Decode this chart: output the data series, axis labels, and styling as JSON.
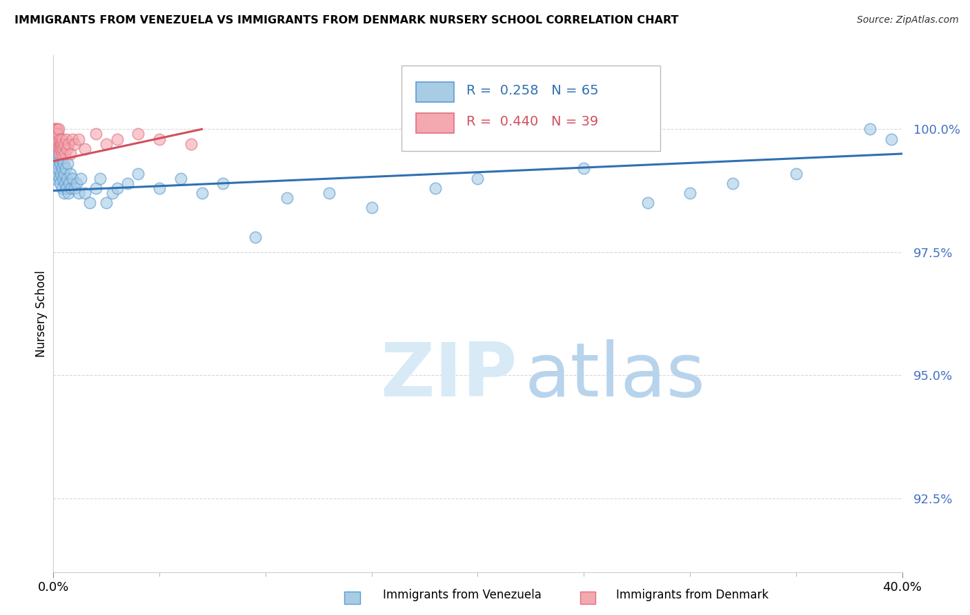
{
  "title": "IMMIGRANTS FROM VENEZUELA VS IMMIGRANTS FROM DENMARK NURSERY SCHOOL CORRELATION CHART",
  "source": "Source: ZipAtlas.com",
  "ylabel": "Nursery School",
  "yticks": [
    92.5,
    95.0,
    97.5,
    100.0
  ],
  "xlim": [
    0.0,
    40.0
  ],
  "ylim": [
    91.0,
    101.5
  ],
  "legend1_R": "0.258",
  "legend1_N": "65",
  "legend2_R": "0.440",
  "legend2_N": "39",
  "blue_scatter_color": "#a8cce4",
  "blue_edge_color": "#5b9bd5",
  "pink_scatter_color": "#f4a8b0",
  "pink_edge_color": "#e07080",
  "blue_line_color": "#3070b0",
  "pink_line_color": "#d05060",
  "ytick_label_color": "#4472c4",
  "watermark_zip_color": "#d8eaf6",
  "watermark_atlas_color": "#b8d4ec",
  "background_color": "#ffffff",
  "grid_color": "#d0d0d0",
  "ven_x": [
    0.05,
    0.08,
    0.1,
    0.12,
    0.13,
    0.15,
    0.15,
    0.17,
    0.18,
    0.2,
    0.2,
    0.22,
    0.25,
    0.25,
    0.28,
    0.3,
    0.32,
    0.35,
    0.38,
    0.4,
    0.42,
    0.45,
    0.48,
    0.5,
    0.52,
    0.55,
    0.58,
    0.6,
    0.65,
    0.68,
    0.7,
    0.75,
    0.8,
    0.85,
    0.9,
    1.0,
    1.1,
    1.2,
    1.3,
    1.5,
    1.7,
    2.0,
    2.2,
    2.5,
    2.8,
    3.0,
    3.5,
    4.0,
    5.0,
    6.0,
    7.0,
    8.0,
    9.5,
    11.0,
    13.0,
    15.0,
    18.0,
    20.0,
    25.0,
    28.0,
    30.0,
    32.0,
    35.0,
    38.5,
    39.5
  ],
  "ven_y": [
    99.0,
    99.2,
    99.3,
    99.5,
    99.1,
    99.6,
    99.8,
    99.4,
    99.3,
    99.7,
    99.5,
    99.2,
    99.4,
    99.6,
    99.0,
    99.3,
    98.9,
    99.1,
    99.4,
    99.2,
    98.8,
    99.0,
    99.3,
    98.7,
    99.1,
    98.9,
    99.2,
    98.8,
    99.0,
    99.3,
    98.7,
    98.9,
    99.1,
    98.8,
    99.0,
    98.8,
    98.9,
    98.7,
    99.0,
    98.7,
    98.5,
    98.8,
    99.0,
    98.5,
    98.7,
    98.8,
    98.9,
    99.1,
    98.8,
    99.0,
    98.7,
    98.9,
    97.8,
    98.6,
    98.7,
    98.4,
    98.8,
    99.0,
    99.2,
    98.5,
    98.7,
    98.9,
    99.1,
    100.0,
    99.8
  ],
  "den_x": [
    0.05,
    0.07,
    0.08,
    0.1,
    0.1,
    0.12,
    0.13,
    0.15,
    0.15,
    0.17,
    0.18,
    0.2,
    0.22,
    0.25,
    0.25,
    0.28,
    0.3,
    0.32,
    0.35,
    0.38,
    0.4,
    0.42,
    0.45,
    0.5,
    0.55,
    0.6,
    0.65,
    0.7,
    0.8,
    0.9,
    1.0,
    1.2,
    1.5,
    2.0,
    2.5,
    3.0,
    4.0,
    5.0,
    6.5
  ],
  "den_y": [
    99.7,
    99.8,
    99.9,
    100.0,
    100.0,
    100.0,
    99.9,
    99.8,
    99.9,
    99.7,
    100.0,
    99.8,
    99.9,
    99.6,
    100.0,
    99.5,
    99.7,
    99.8,
    99.6,
    99.7,
    99.5,
    99.8,
    99.6,
    99.7,
    99.5,
    99.8,
    99.6,
    99.7,
    99.5,
    99.8,
    99.7,
    99.8,
    99.6,
    99.9,
    99.7,
    99.8,
    99.9,
    99.8,
    99.7
  ]
}
